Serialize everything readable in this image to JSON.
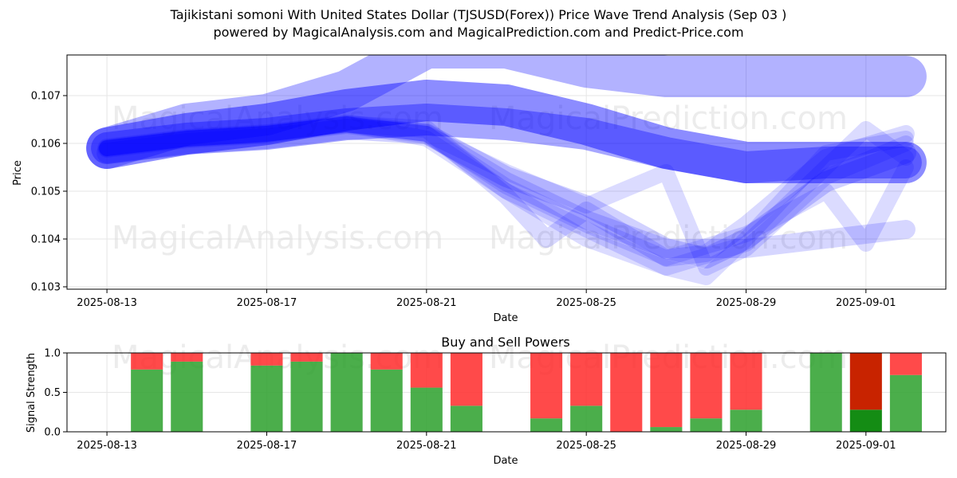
{
  "title_line1": "Tajikistani somoni With United States Dollar (TJSUSD(Forex)) Price Wave Trend Analysis (Sep 03 )",
  "title_line2": "powered by MagicalAnalysis.com and MagicalPrediction.com and Predict-Price.com",
  "watermarks": {
    "analysis": "MagicalAnalysis.com",
    "prediction": "MagicalPrediction.com"
  },
  "colors": {
    "wave": "#0000ff",
    "buy": "#2ca02c",
    "sell": "#ff2a2a",
    "sell_strong": "#c82300",
    "buy_strong": "#148c14",
    "grid": "#e6e6e6",
    "watermark": "#dddddd"
  },
  "chart_data": [
    {
      "type": "line",
      "title": "",
      "xlabel": "Date",
      "ylabel": "Price",
      "x_tick_labels": [
        "2025-08-13",
        "2025-08-17",
        "2025-08-21",
        "2025-08-25",
        "2025-08-29",
        "2025-09-01"
      ],
      "y_tick_labels": [
        "0.103",
        "0.104",
        "0.105",
        "0.106",
        "0.107"
      ],
      "y_ticks": [
        0.103,
        0.104,
        0.105,
        0.106,
        0.107
      ],
      "xlim": [
        "2025-08-12",
        "2025-09-03"
      ],
      "ylim": [
        0.10295,
        0.10785
      ],
      "grid": true,
      "series": [
        {
          "points": [
            [
              "2025-08-13",
              0.1059
            ],
            [
              "2025-08-15",
              0.1064
            ],
            [
              "2025-08-17",
              0.1066
            ],
            [
              "2025-08-19",
              0.1071
            ],
            [
              "2025-08-21",
              0.108
            ],
            [
              "2025-08-23",
              0.108
            ],
            [
              "2025-08-25",
              0.1076
            ],
            [
              "2025-08-27",
              0.1074
            ],
            [
              "2025-08-29",
              0.1074
            ],
            [
              "2025-08-31",
              0.1074
            ],
            [
              "2025-09-02",
              0.1074
            ]
          ],
          "width": 52,
          "opacity": 0.3
        },
        {
          "points": [
            [
              "2025-08-13",
              0.1059
            ],
            [
              "2025-08-15",
              0.1062
            ],
            [
              "2025-08-17",
              0.1064
            ],
            [
              "2025-08-19",
              0.1067
            ],
            [
              "2025-08-21",
              0.1069
            ],
            [
              "2025-08-23",
              0.1068
            ],
            [
              "2025-08-25",
              0.1064
            ],
            [
              "2025-08-27",
              0.1059
            ],
            [
              "2025-08-29",
              0.1056
            ],
            [
              "2025-08-31",
              0.1056
            ],
            [
              "2025-09-02",
              0.1056
            ]
          ],
          "width": 52,
          "opacity": 0.45
        },
        {
          "points": [
            [
              "2025-08-13",
              0.1059
            ],
            [
              "2025-08-15",
              0.1061
            ],
            [
              "2025-08-17",
              0.1062
            ],
            [
              "2025-08-19",
              0.1064
            ],
            [
              "2025-08-21",
              0.1065
            ],
            [
              "2025-08-23",
              0.1064
            ],
            [
              "2025-08-25",
              0.1062
            ],
            [
              "2025-08-27",
              0.1058
            ],
            [
              "2025-08-29",
              0.1055
            ],
            [
              "2025-08-31",
              0.1056
            ],
            [
              "2025-09-02",
              0.1056
            ]
          ],
          "width": 40,
          "opacity": 0.35
        },
        {
          "points": [
            [
              "2025-08-13",
              0.1058
            ],
            [
              "2025-08-15",
              0.106
            ],
            [
              "2025-08-17",
              0.1061
            ],
            [
              "2025-08-19",
              0.1063
            ],
            [
              "2025-08-21",
              0.1062
            ],
            [
              "2025-08-23",
              0.1053
            ],
            [
              "2025-08-25",
              0.1047
            ],
            [
              "2025-08-27",
              0.1038
            ],
            [
              "2025-08-28",
              0.1036
            ],
            [
              "2025-08-29",
              0.104
            ],
            [
              "2025-08-31",
              0.1052
            ],
            [
              "2025-09-02",
              0.1058
            ]
          ],
          "width": 26,
          "opacity": 0.18
        },
        {
          "points": [
            [
              "2025-08-13",
              0.1059
            ],
            [
              "2025-08-15",
              0.1061
            ],
            [
              "2025-08-17",
              0.1062
            ],
            [
              "2025-08-19",
              0.1064
            ],
            [
              "2025-08-21",
              0.1063
            ],
            [
              "2025-08-23",
              0.1049
            ],
            [
              "2025-08-24",
              0.104
            ],
            [
              "2025-08-25",
              0.1046
            ],
            [
              "2025-08-27",
              0.1036
            ],
            [
              "2025-08-28",
              0.1037
            ],
            [
              "2025-08-29",
              0.1043
            ],
            [
              "2025-08-31",
              0.1057
            ],
            [
              "2025-09-02",
              0.1062
            ]
          ],
          "width": 22,
          "opacity": 0.15
        },
        {
          "points": [
            [
              "2025-08-13",
              0.1059
            ],
            [
              "2025-08-15",
              0.1061
            ],
            [
              "2025-08-17",
              0.1062
            ],
            [
              "2025-08-19",
              0.1064
            ],
            [
              "2025-08-21",
              0.1062
            ],
            [
              "2025-08-23",
              0.1052
            ],
            [
              "2025-08-25",
              0.1044
            ],
            [
              "2025-08-27",
              0.1038
            ],
            [
              "2025-08-29",
              0.1038
            ],
            [
              "2025-08-31",
              0.104
            ],
            [
              "2025-09-02",
              0.1042
            ]
          ],
          "width": 24,
          "opacity": 0.16
        },
        {
          "points": [
            [
              "2025-08-13",
              0.1059
            ],
            [
              "2025-08-15",
              0.1061
            ],
            [
              "2025-08-17",
              0.1062
            ],
            [
              "2025-08-19",
              0.1064
            ],
            [
              "2025-08-21",
              0.1061
            ],
            [
              "2025-08-23",
              0.105
            ],
            [
              "2025-08-25",
              0.1042
            ],
            [
              "2025-08-27",
              0.1034
            ],
            [
              "2025-08-28",
              0.1032
            ],
            [
              "2025-08-29",
              0.104
            ],
            [
              "2025-08-31",
              0.1058
            ],
            [
              "2025-09-02",
              0.1061
            ]
          ],
          "width": 20,
          "opacity": 0.14
        },
        {
          "points": [
            [
              "2025-08-13",
              0.1059
            ],
            [
              "2025-08-15",
              0.1061
            ],
            [
              "2025-08-17",
              0.1062
            ],
            [
              "2025-08-19",
              0.1064
            ],
            [
              "2025-08-21",
              0.1062
            ],
            [
              "2025-08-23",
              0.1054
            ],
            [
              "2025-08-25",
              0.1047
            ],
            [
              "2025-08-27",
              0.1054
            ],
            [
              "2025-08-28",
              0.1034
            ],
            [
              "2025-08-29",
              0.1038
            ],
            [
              "2025-08-31",
              0.1053
            ],
            [
              "2025-09-02",
              0.106
            ]
          ],
          "width": 20,
          "opacity": 0.14
        },
        {
          "points": [
            [
              "2025-08-13",
              0.1059
            ],
            [
              "2025-08-15",
              0.1061
            ],
            [
              "2025-08-17",
              0.1062
            ],
            [
              "2025-08-19",
              0.1064
            ],
            [
              "2025-08-21",
              0.1062
            ],
            [
              "2025-08-23",
              0.1051
            ],
            [
              "2025-08-25",
              0.1043
            ],
            [
              "2025-08-27",
              0.1036
            ],
            [
              "2025-08-29",
              0.1041
            ],
            [
              "2025-08-31",
              0.105
            ],
            [
              "2025-09-01",
              0.1039
            ],
            [
              "2025-09-02",
              0.1055
            ]
          ],
          "width": 20,
          "opacity": 0.14
        },
        {
          "points": [
            [
              "2025-08-13",
              0.1059
            ],
            [
              "2025-08-15",
              0.1061
            ],
            [
              "2025-08-17",
              0.1062
            ],
            [
              "2025-08-19",
              0.1064
            ],
            [
              "2025-08-21",
              0.1062
            ],
            [
              "2025-08-23",
              0.105
            ],
            [
              "2025-08-25",
              0.104
            ],
            [
              "2025-08-27",
              0.1034
            ],
            [
              "2025-08-29",
              0.1039
            ],
            [
              "2025-08-31",
              0.1055
            ],
            [
              "2025-09-01",
              0.1063
            ],
            [
              "2025-09-02",
              0.1057
            ]
          ],
          "width": 20,
          "opacity": 0.14
        }
      ]
    },
    {
      "type": "bar",
      "title": "Buy and Sell Powers",
      "xlabel": "Date",
      "ylabel": "Signal Strength",
      "x_tick_labels": [
        "2025-08-13",
        "2025-08-17",
        "2025-08-21",
        "2025-08-25",
        "2025-08-29",
        "2025-09-01"
      ],
      "y_tick_labels": [
        "0.0",
        "0.5",
        "1.0"
      ],
      "y_ticks": [
        0.0,
        0.5,
        1.0
      ],
      "xlim": [
        "2025-08-12",
        "2025-09-03"
      ],
      "ylim": [
        0,
        1
      ],
      "grid": true,
      "bars": [
        {
          "date": "2025-08-14",
          "buy": 0.79,
          "sell": 0.21
        },
        {
          "date": "2025-08-15",
          "buy": 0.89,
          "sell": 0.11
        },
        {
          "date": "2025-08-17",
          "buy": 0.84,
          "sell": 0.16
        },
        {
          "date": "2025-08-18",
          "buy": 0.89,
          "sell": 0.11
        },
        {
          "date": "2025-08-19",
          "buy": 1.0,
          "sell": 0.0
        },
        {
          "date": "2025-08-20",
          "buy": 0.79,
          "sell": 0.21
        },
        {
          "date": "2025-08-21",
          "buy": 0.56,
          "sell": 0.44
        },
        {
          "date": "2025-08-22",
          "buy": 0.33,
          "sell": 0.67
        },
        {
          "date": "2025-08-24",
          "buy": 0.17,
          "sell": 0.83
        },
        {
          "date": "2025-08-25",
          "buy": 0.33,
          "sell": 0.67
        },
        {
          "date": "2025-08-26",
          "buy": 0.0,
          "sell": 1.0
        },
        {
          "date": "2025-08-27",
          "buy": 0.06,
          "sell": 0.94
        },
        {
          "date": "2025-08-28",
          "buy": 0.17,
          "sell": 0.83
        },
        {
          "date": "2025-08-29",
          "buy": 0.28,
          "sell": 0.72
        },
        {
          "date": "2025-08-31",
          "buy": 1.0,
          "sell": 0.0
        },
        {
          "date": "2025-09-01",
          "buy": 0.28,
          "sell": 0.72,
          "highlight": true
        },
        {
          "date": "2025-09-02",
          "buy": 0.72,
          "sell": 0.28
        }
      ]
    }
  ]
}
